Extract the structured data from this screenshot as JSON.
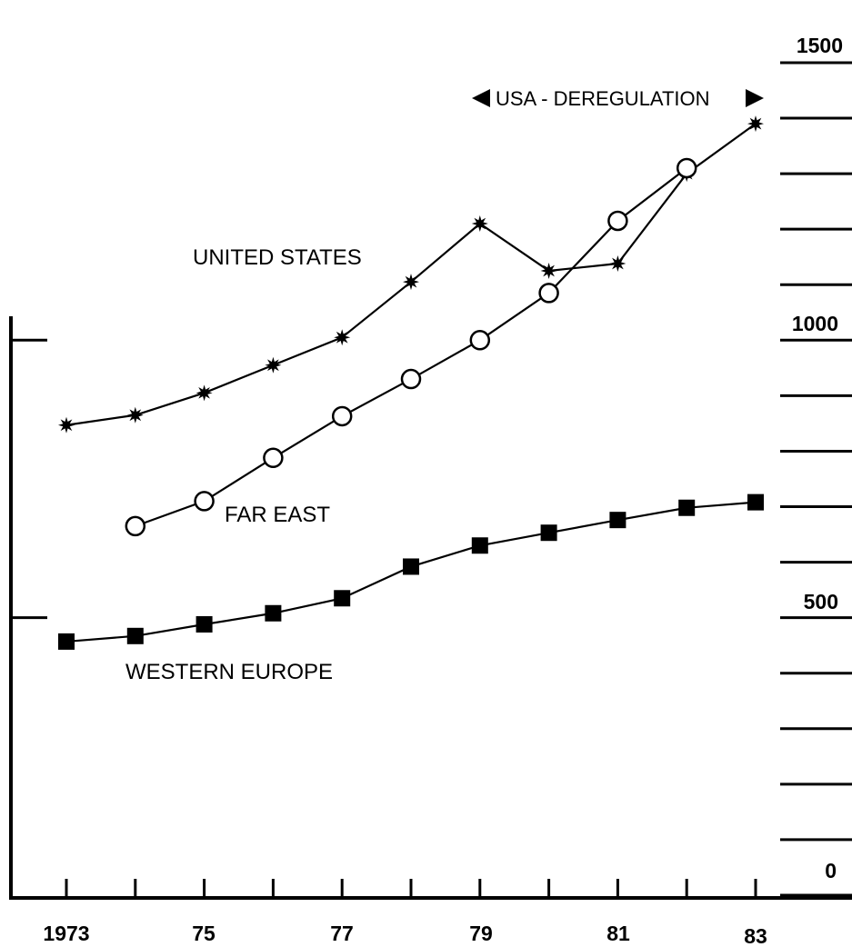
{
  "chart_data": {
    "type": "line",
    "title": "",
    "xlabel": "",
    "ylabel": "",
    "x": [
      1973,
      1974,
      1975,
      1976,
      1977,
      1978,
      1979,
      1980,
      1981,
      1982,
      1983
    ],
    "x_tick_labels": [
      "1973",
      "75",
      "77",
      "79",
      "81",
      "83"
    ],
    "y_tick_labels": [
      "1500",
      "1000",
      "500",
      "0"
    ],
    "ylim": [
      0,
      1500
    ],
    "grid": false,
    "series": [
      {
        "name": "UNITED STATES",
        "marker": "star",
        "x": [
          1973,
          1974,
          1975,
          1976,
          1977,
          1978,
          1979,
          1980,
          1981,
          1982,
          1983
        ],
        "values": [
          847,
          865,
          905,
          955,
          1005,
          1105,
          1210,
          1125,
          1138,
          1300,
          1390
        ]
      },
      {
        "name": "FAR EAST",
        "marker": "open-circle",
        "x": [
          1974,
          1975,
          1976,
          1977,
          1978,
          1979,
          1980,
          1981,
          1982
        ],
        "values": [
          665,
          710,
          788,
          863,
          930,
          1000,
          1085,
          1215,
          1310
        ]
      },
      {
        "name": "WESTERN EUROPE",
        "marker": "filled-square",
        "x": [
          1973,
          1974,
          1975,
          1976,
          1977,
          1978,
          1979,
          1980,
          1981,
          1982,
          1983
        ],
        "values": [
          457,
          467,
          488,
          508,
          535,
          592,
          630,
          653,
          676,
          698,
          708
        ]
      }
    ],
    "annotations": [
      {
        "text": "USA - DEREGULATION",
        "x_start": 1979,
        "x_end": 1983
      }
    ]
  }
}
